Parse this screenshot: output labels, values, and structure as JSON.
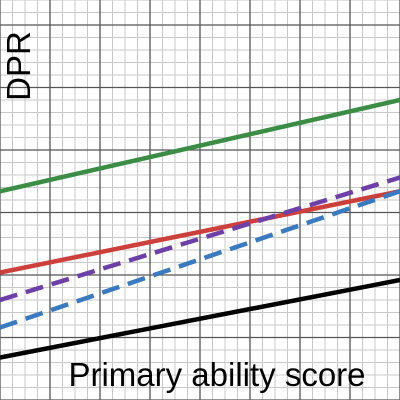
{
  "chart_data": {
    "type": "line",
    "xlabel": "Primary ability score",
    "ylabel": "DPR",
    "xlim": [
      0,
      32
    ],
    "ylim": [
      0,
      32
    ],
    "x_minor_step": 1,
    "x_major_step": 4,
    "y_minor_step": 1,
    "y_major_step": 5,
    "grid": true,
    "series": [
      {
        "color": "#3b8c45",
        "dash": "solid",
        "x": [
          0,
          32
        ],
        "y": [
          16.7,
          24.0
        ]
      },
      {
        "color": "#cc3f3b",
        "dash": "solid",
        "x": [
          0,
          32
        ],
        "y": [
          10.2,
          16.7
        ]
      },
      {
        "color": "#6d3fa8",
        "dash": "dashed",
        "x": [
          0,
          32
        ],
        "y": [
          8.0,
          17.8
        ]
      },
      {
        "color": "#3a7ac0",
        "dash": "dashed",
        "x": [
          0,
          32
        ],
        "y": [
          5.8,
          16.7
        ]
      },
      {
        "color": "#000000",
        "dash": "solid",
        "x": [
          0,
          32
        ],
        "y": [
          3.4,
          9.6
        ]
      }
    ]
  }
}
